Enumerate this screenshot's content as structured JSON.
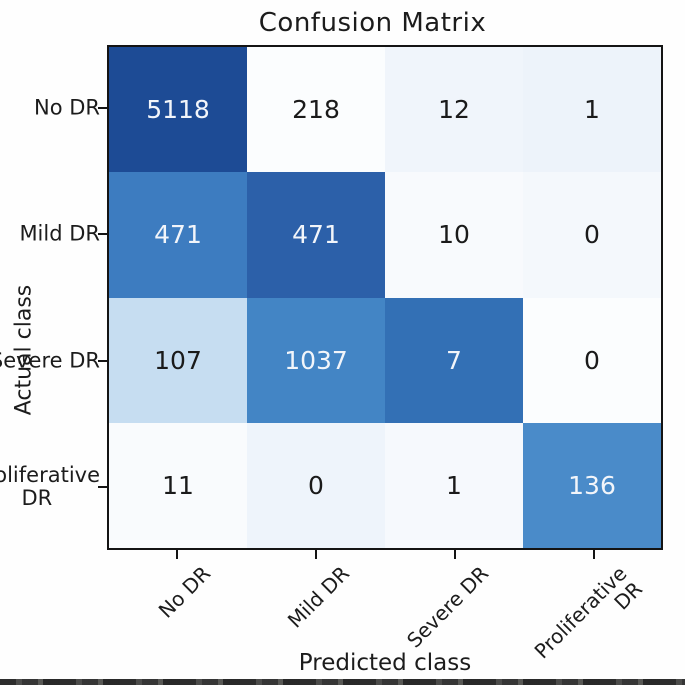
{
  "figure": {
    "title": "Confusion Matrix",
    "xlabel": "Predicted class",
    "ylabel": "Actual class"
  },
  "chart_data": {
    "type": "heatmap",
    "title": "Confusion Matrix",
    "xlabel": "Predicted class",
    "ylabel": "Actual class",
    "colormap": "Blues",
    "x_categories": [
      "No DR",
      "Mild DR",
      "Severe DR",
      "Proliferative DR"
    ],
    "y_categories": [
      "No DR",
      "Mild DR",
      "Severe DR",
      "Proliferative DR"
    ],
    "x_tick_lines": [
      [
        "No DR"
      ],
      [
        "Mild DR"
      ],
      [
        "Severe DR"
      ],
      [
        "Proliferative",
        "DR"
      ]
    ],
    "y_tick_lines": [
      [
        "No DR"
      ],
      [
        "Mild DR"
      ],
      [
        "Severe DR"
      ],
      [
        "Proliferative",
        "DR"
      ]
    ],
    "values": [
      [
        5118,
        218,
        12,
        1
      ],
      [
        471,
        471,
        10,
        0
      ],
      [
        107,
        1037,
        7,
        0
      ],
      [
        11,
        0,
        1,
        136
      ]
    ],
    "cell_colors": [
      [
        "#1d4b95",
        "#fbfdfe",
        "#f0f5fb",
        "#edf3fa"
      ],
      [
        "#3d7cc0",
        "#2c60a9",
        "#f8fafd",
        "#f4f8fc"
      ],
      [
        "#c6ddf1",
        "#4385c5",
        "#3370b5",
        "#fbfdfe"
      ],
      [
        "#f9fbfd",
        "#eef4fb",
        "#f6f9fd",
        "#4a8bc9"
      ]
    ],
    "cell_text_colors": [
      [
        "#f2f5fa",
        "#1a1a1a",
        "#1a1a1a",
        "#1a1a1a"
      ],
      [
        "#f2f5fa",
        "#f2f5fa",
        "#1a1a1a",
        "#1a1a1a"
      ],
      [
        "#1a1a1a",
        "#f2f5fa",
        "#f2f5fa",
        "#1a1a1a"
      ],
      [
        "#1a1a1a",
        "#1a1a1a",
        "#1a1a1a",
        "#f2f5fa"
      ]
    ],
    "axis_color": "#141414"
  }
}
